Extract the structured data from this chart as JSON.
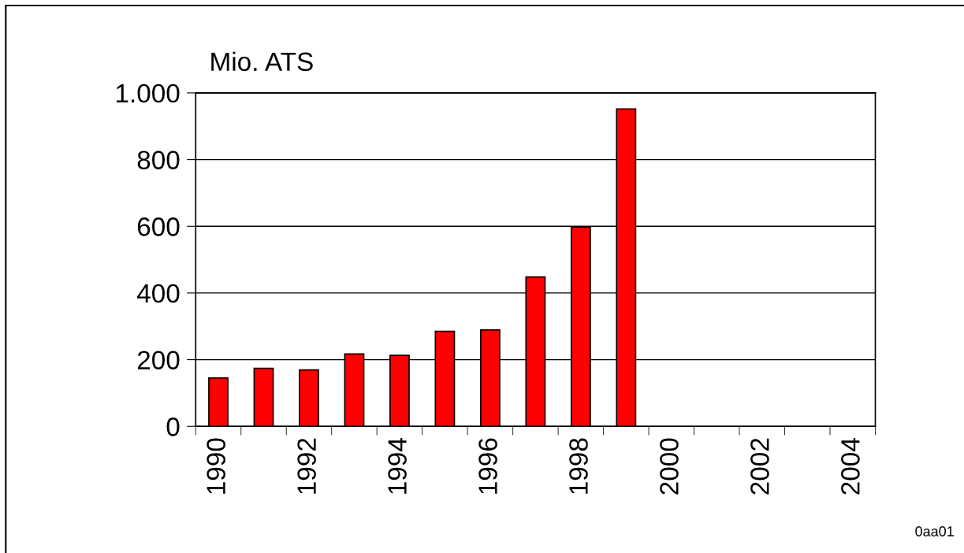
{
  "chart_data": {
    "type": "bar",
    "ylabel": "Mio. ATS",
    "categories": [
      "1990",
      null,
      "1992",
      null,
      "1994",
      null,
      "1996",
      null,
      "1998",
      null,
      "2000",
      null,
      "2002",
      null,
      "2004"
    ],
    "values": [
      145,
      174,
      169,
      217,
      213,
      285,
      289,
      448,
      598,
      952,
      null,
      null,
      null,
      null,
      null
    ],
    "color": "#ff0000",
    "ylim": [
      0,
      1000
    ],
    "yticks": [
      0,
      200,
      400,
      600,
      800,
      {
        "value": 1000,
        "label": "1.000"
      }
    ],
    "grid": "y",
    "annotations": [
      "0aa01"
    ]
  }
}
